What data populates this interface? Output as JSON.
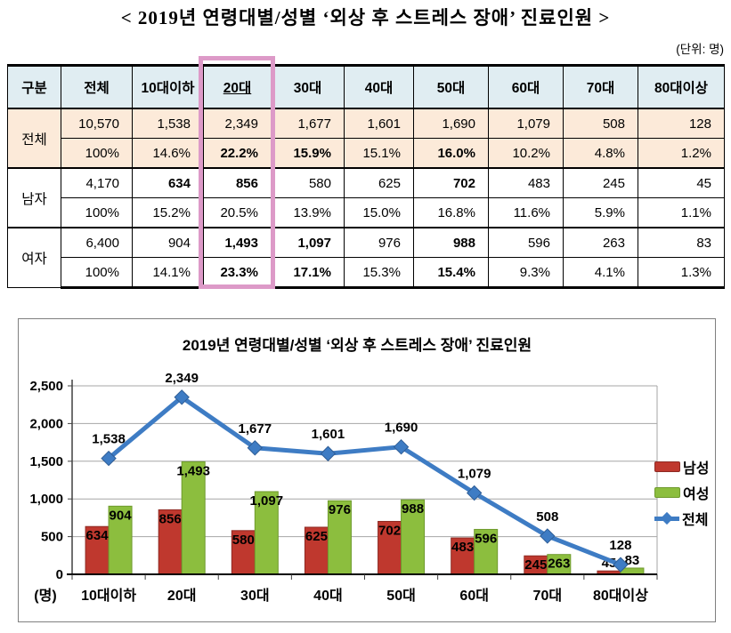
{
  "page_title": "< 2019년 연령대별/성별 ‘외상 후 스트레스 장애’ 진료인원 >",
  "unit_note": "(단위: 명)",
  "table": {
    "header_bg": "#e0edf2",
    "highlight_border_color": "#dd9ac8",
    "col_headers": [
      "구분",
      "전체",
      "10대이하",
      "20대",
      "30대",
      "40대",
      "50대",
      "60대",
      "70대",
      "80대이상"
    ],
    "highlighted_col": "20대",
    "groups": [
      {
        "label": "전체",
        "bg": "#fcead9",
        "rows": [
          {
            "cells": [
              "10,570",
              "1,538",
              "2,349",
              "1,677",
              "1,601",
              "1,690",
              "1,079",
              "508",
              "128"
            ],
            "bold": []
          },
          {
            "cells": [
              "100%",
              "14.6%",
              "22.2%",
              "15.9%",
              "15.1%",
              "16.0%",
              "10.2%",
              "4.8%",
              "1.2%"
            ],
            "bold": [
              2,
              3,
              5
            ]
          }
        ]
      },
      {
        "label": "남자",
        "bg": "#ffffff",
        "rows": [
          {
            "cells": [
              "4,170",
              "634",
              "856",
              "580",
              "625",
              "702",
              "483",
              "245",
              "45"
            ],
            "bold": [
              1,
              2,
              5
            ]
          },
          {
            "cells": [
              "100%",
              "15.2%",
              "20.5%",
              "13.9%",
              "15.0%",
              "16.8%",
              "11.6%",
              "5.9%",
              "1.1%"
            ],
            "bold": []
          }
        ]
      },
      {
        "label": "여자",
        "bg": "#ffffff",
        "rows": [
          {
            "cells": [
              "6,400",
              "904",
              "1,493",
              "1,097",
              "976",
              "988",
              "596",
              "263",
              "83"
            ],
            "bold": [
              2,
              3,
              5
            ]
          },
          {
            "cells": [
              "100%",
              "14.1%",
              "23.3%",
              "17.1%",
              "15.3%",
              "15.4%",
              "9.3%",
              "4.1%",
              "1.3%"
            ],
            "bold": [
              2,
              3,
              5
            ]
          }
        ]
      }
    ]
  },
  "chart_data": {
    "type": "combo",
    "title": "2019년 연령대별/성별 ‘외상 후 스트레스 장애’ 진료인원",
    "categories": [
      "10대이하",
      "20대",
      "30대",
      "40대",
      "50대",
      "60대",
      "70대",
      "80대이상"
    ],
    "series": [
      {
        "name": "남성",
        "type": "bar",
        "color": "#bf382e",
        "edge": "#8e2a23",
        "values": [
          634,
          856,
          580,
          625,
          702,
          483,
          245,
          45
        ]
      },
      {
        "name": "여성",
        "type": "bar",
        "color": "#8cbe3e",
        "edge": "#6e9a2d",
        "values": [
          904,
          1493,
          1097,
          976,
          988,
          596,
          263,
          83
        ]
      },
      {
        "name": "전체",
        "type": "line",
        "color": "#3e7cc4",
        "edge": "#2e5d96",
        "values": [
          1538,
          2349,
          1677,
          1601,
          1690,
          1079,
          508,
          128
        ]
      }
    ],
    "ylim": [
      0,
      2500
    ],
    "yticks": [
      {
        "v": 0,
        "label": "0"
      },
      {
        "v": 500,
        "label": "500"
      },
      {
        "v": 1000,
        "label": "1,000"
      },
      {
        "v": 1500,
        "label": "1,500"
      },
      {
        "v": 2000,
        "label": "2,000"
      },
      {
        "v": 2500,
        "label": "2,500"
      }
    ],
    "y_axis_unit": "(명)",
    "legend_position": "right",
    "grid": true,
    "grid_color": "#a6a6a6"
  }
}
